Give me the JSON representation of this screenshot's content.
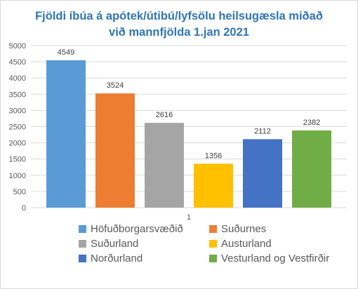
{
  "chart_data": {
    "type": "bar",
    "title_line1": "Fjöldi íbúa á apótek/útibú/lyfsölu heilsugæsla miðað",
    "title_line2": "við mannfjölda 1.jan 2021",
    "categories": [
      "1"
    ],
    "ylim": [
      0,
      5000
    ],
    "yticks": [
      0,
      500,
      1000,
      1500,
      2000,
      2500,
      3000,
      3500,
      4000,
      4500,
      5000
    ],
    "grid": true,
    "legend_position": "bottom",
    "series": [
      {
        "name": "Höfuðborgarsvæðið",
        "values": [
          4549
        ],
        "color": "#5b9bd5"
      },
      {
        "name": "Suðurnes",
        "values": [
          3524
        ],
        "color": "#ed7d31"
      },
      {
        "name": "Suðurland",
        "values": [
          2616
        ],
        "color": "#a5a5a5"
      },
      {
        "name": "Austurland",
        "values": [
          1356
        ],
        "color": "#ffc000"
      },
      {
        "name": "Norðurland",
        "values": [
          2112
        ],
        "color": "#4472c4"
      },
      {
        "name": "Vesturland og Vestfirðir",
        "values": [
          2382
        ],
        "color": "#70ad47"
      }
    ]
  }
}
